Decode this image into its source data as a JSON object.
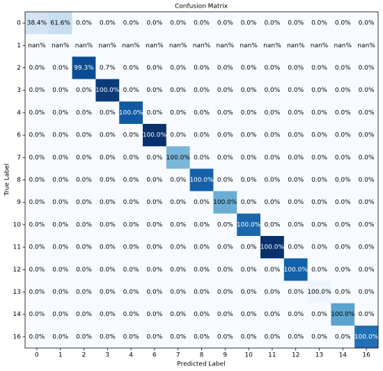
{
  "chart_data": {
    "type": "heatmap",
    "title": "Confusion Matrix",
    "xlabel": "Predicted Label",
    "ylabel": "True Label",
    "x_categories": [
      "0",
      "1",
      "2",
      "3",
      "4",
      "6",
      "7",
      "8",
      "9",
      "10",
      "11",
      "12",
      "13",
      "14",
      "16"
    ],
    "y_categories": [
      "0",
      "1",
      "2",
      "3",
      "4",
      "6",
      "7",
      "8",
      "9",
      "10",
      "11",
      "12",
      "13",
      "14",
      "16"
    ],
    "values": [
      [
        38.4,
        61.6,
        0,
        0,
        0,
        0,
        0,
        0,
        0,
        0,
        0,
        0,
        0,
        0,
        0
      ],
      [
        null,
        null,
        null,
        null,
        null,
        null,
        null,
        null,
        null,
        null,
        null,
        null,
        null,
        null,
        null
      ],
      [
        0,
        0,
        99.3,
        0.7,
        0,
        0,
        0,
        0,
        0,
        0,
        0,
        0,
        0,
        0,
        0
      ],
      [
        0,
        0,
        0,
        100,
        0,
        0,
        0,
        0,
        0,
        0,
        0,
        0,
        0,
        0,
        0
      ],
      [
        0,
        0,
        0,
        0,
        100,
        0,
        0,
        0,
        0,
        0,
        0,
        0,
        0,
        0,
        0
      ],
      [
        0,
        0,
        0,
        0,
        0,
        100,
        0,
        0,
        0,
        0,
        0,
        0,
        0,
        0,
        0
      ],
      [
        0,
        0,
        0,
        0,
        0,
        0,
        100,
        0,
        0,
        0,
        0,
        0,
        0,
        0,
        0
      ],
      [
        0,
        0,
        0,
        0,
        0,
        0,
        0,
        100,
        0,
        0,
        0,
        0,
        0,
        0,
        0
      ],
      [
        0,
        0,
        0,
        0,
        0,
        0,
        0,
        0,
        100,
        0,
        0,
        0,
        0,
        0,
        0
      ],
      [
        0,
        0,
        0,
        0,
        0,
        0,
        0,
        0,
        0,
        100,
        0,
        0,
        0,
        0,
        0
      ],
      [
        0,
        0,
        0,
        0,
        0,
        0,
        0,
        0,
        0,
        0,
        100,
        0,
        0,
        0,
        0
      ],
      [
        0,
        0,
        0,
        0,
        0,
        0,
        0,
        0,
        0,
        0,
        0,
        100,
        0,
        0,
        0
      ],
      [
        0,
        0,
        0,
        0,
        0,
        0,
        0,
        0,
        0,
        0,
        0,
        0,
        100,
        0,
        0
      ],
      [
        0,
        0,
        0,
        0,
        0,
        0,
        0,
        0,
        0,
        0,
        0,
        0,
        0,
        100,
        0
      ],
      [
        0,
        0,
        0,
        0,
        0,
        0,
        0,
        0,
        0,
        0,
        0,
        0,
        0,
        0,
        100
      ]
    ],
    "value_labels": [
      [
        "38.4%",
        "61.6%",
        "0.0%",
        "0.0%",
        "0.0%",
        "0.0%",
        "0.0%",
        "0.0%",
        "0.0%",
        "0.0%",
        "0.0%",
        "0.0%",
        "0.0%",
        "0.0%",
        "0.0%"
      ],
      [
        "nan%",
        "nan%",
        "nan%",
        "nan%",
        "nan%",
        "nan%",
        "nan%",
        "nan%",
        "nan%",
        "nan%",
        "nan%",
        "nan%",
        "nan%",
        "nan%",
        "nan%"
      ],
      [
        "0.0%",
        "0.0%",
        "99.3%",
        "0.7%",
        "0.0%",
        "0.0%",
        "0.0%",
        "0.0%",
        "0.0%",
        "0.0%",
        "0.0%",
        "0.0%",
        "0.0%",
        "0.0%",
        "0.0%"
      ],
      [
        "0.0%",
        "0.0%",
        "0.0%",
        "100.0%",
        "0.0%",
        "0.0%",
        "0.0%",
        "0.0%",
        "0.0%",
        "0.0%",
        "0.0%",
        "0.0%",
        "0.0%",
        "0.0%",
        "0.0%"
      ],
      [
        "0.0%",
        "0.0%",
        "0.0%",
        "0.0%",
        "100.0%",
        "0.0%",
        "0.0%",
        "0.0%",
        "0.0%",
        "0.0%",
        "0.0%",
        "0.0%",
        "0.0%",
        "0.0%",
        "0.0%"
      ],
      [
        "0.0%",
        "0.0%",
        "0.0%",
        "0.0%",
        "0.0%",
        "100.0%",
        "0.0%",
        "0.0%",
        "0.0%",
        "0.0%",
        "0.0%",
        "0.0%",
        "0.0%",
        "0.0%",
        "0.0%"
      ],
      [
        "0.0%",
        "0.0%",
        "0.0%",
        "0.0%",
        "0.0%",
        "0.0%",
        "100.0%",
        "0.0%",
        "0.0%",
        "0.0%",
        "0.0%",
        "0.0%",
        "0.0%",
        "0.0%",
        "0.0%"
      ],
      [
        "0.0%",
        "0.0%",
        "0.0%",
        "0.0%",
        "0.0%",
        "0.0%",
        "0.0%",
        "100.0%",
        "0.0%",
        "0.0%",
        "0.0%",
        "0.0%",
        "0.0%",
        "0.0%",
        "0.0%"
      ],
      [
        "0.0%",
        "0.0%",
        "0.0%",
        "0.0%",
        "0.0%",
        "0.0%",
        "0.0%",
        "0.0%",
        "100.0%",
        "0.0%",
        "0.0%",
        "0.0%",
        "0.0%",
        "0.0%",
        "0.0%"
      ],
      [
        "0.0%",
        "0.0%",
        "0.0%",
        "0.0%",
        "0.0%",
        "0.0%",
        "0.0%",
        "0.0%",
        "0.0%",
        "100.0%",
        "0.0%",
        "0.0%",
        "0.0%",
        "0.0%",
        "0.0%"
      ],
      [
        "0.0%",
        "0.0%",
        "0.0%",
        "0.0%",
        "0.0%",
        "0.0%",
        "0.0%",
        "0.0%",
        "0.0%",
        "0.0%",
        "100.0%",
        "0.0%",
        "0.0%",
        "0.0%",
        "0.0%"
      ],
      [
        "0.0%",
        "0.0%",
        "0.0%",
        "0.0%",
        "0.0%",
        "0.0%",
        "0.0%",
        "0.0%",
        "0.0%",
        "0.0%",
        "0.0%",
        "100.0%",
        "0.0%",
        "0.0%",
        "0.0%"
      ],
      [
        "0.0%",
        "0.0%",
        "0.0%",
        "0.0%",
        "0.0%",
        "0.0%",
        "0.0%",
        "0.0%",
        "0.0%",
        "0.0%",
        "0.0%",
        "0.0%",
        "100.0%",
        "0.0%",
        "0.0%"
      ],
      [
        "0.0%",
        "0.0%",
        "0.0%",
        "0.0%",
        "0.0%",
        "0.0%",
        "0.0%",
        "0.0%",
        "0.0%",
        "0.0%",
        "0.0%",
        "0.0%",
        "0.0%",
        "100.0%",
        "0.0%"
      ],
      [
        "0.0%",
        "0.0%",
        "0.0%",
        "0.0%",
        "0.0%",
        "0.0%",
        "0.0%",
        "0.0%",
        "0.0%",
        "0.0%",
        "0.0%",
        "0.0%",
        "0.0%",
        "0.0%",
        "100.0%"
      ]
    ],
    "colors": [
      [
        "#d3e3f3",
        "#c9ddf0",
        "#f7fbff",
        "#f7fbff",
        "#f7fbff",
        "#f7fbff",
        "#f7fbff",
        "#f7fbff",
        "#f7fbff",
        "#f7fbff",
        "#f7fbff",
        "#f7fbff",
        "#f7fbff",
        "#f7fbff",
        "#f7fbff"
      ],
      [
        "#f7fbff",
        "#f7fbff",
        "#f7fbff",
        "#f7fbff",
        "#f7fbff",
        "#f7fbff",
        "#f7fbff",
        "#f7fbff",
        "#f7fbff",
        "#f7fbff",
        "#f7fbff",
        "#f7fbff",
        "#f7fbff",
        "#f7fbff",
        "#f7fbff"
      ],
      [
        "#f7fbff",
        "#f7fbff",
        "#0b4d94",
        "#f7fbff",
        "#f7fbff",
        "#f7fbff",
        "#f7fbff",
        "#f7fbff",
        "#f7fbff",
        "#f7fbff",
        "#f7fbff",
        "#f7fbff",
        "#f7fbff",
        "#f7fbff",
        "#f7fbff"
      ],
      [
        "#f7fbff",
        "#f7fbff",
        "#f7fbff",
        "#0a3a7a",
        "#f7fbff",
        "#f7fbff",
        "#f7fbff",
        "#f7fbff",
        "#f7fbff",
        "#f7fbff",
        "#f7fbff",
        "#f7fbff",
        "#f7fbff",
        "#f7fbff",
        "#f7fbff"
      ],
      [
        "#f7fbff",
        "#f7fbff",
        "#f7fbff",
        "#f7fbff",
        "#0f5aa3",
        "#f7fbff",
        "#f7fbff",
        "#f7fbff",
        "#f7fbff",
        "#f7fbff",
        "#f7fbff",
        "#f7fbff",
        "#f7fbff",
        "#f7fbff",
        "#f7fbff"
      ],
      [
        "#f7fbff",
        "#f7fbff",
        "#f7fbff",
        "#f7fbff",
        "#f7fbff",
        "#08306b",
        "#f7fbff",
        "#f7fbff",
        "#f7fbff",
        "#f7fbff",
        "#f7fbff",
        "#f7fbff",
        "#f7fbff",
        "#f7fbff",
        "#f7fbff"
      ],
      [
        "#f7fbff",
        "#f7fbff",
        "#f7fbff",
        "#f7fbff",
        "#f7fbff",
        "#f7fbff",
        "#7ab6d9",
        "#f7fbff",
        "#f7fbff",
        "#f7fbff",
        "#f7fbff",
        "#f7fbff",
        "#f7fbff",
        "#f7fbff",
        "#f7fbff"
      ],
      [
        "#f7fbff",
        "#f7fbff",
        "#f7fbff",
        "#f7fbff",
        "#f7fbff",
        "#f7fbff",
        "#f7fbff",
        "#1561a9",
        "#f7fbff",
        "#f7fbff",
        "#f7fbff",
        "#f7fbff",
        "#f7fbff",
        "#f7fbff",
        "#f7fbff"
      ],
      [
        "#f7fbff",
        "#f7fbff",
        "#f7fbff",
        "#f7fbff",
        "#f7fbff",
        "#f7fbff",
        "#f7fbff",
        "#f7fbff",
        "#6aaed6",
        "#f7fbff",
        "#f7fbff",
        "#f7fbff",
        "#f7fbff",
        "#f7fbff",
        "#f7fbff"
      ],
      [
        "#f7fbff",
        "#f7fbff",
        "#f7fbff",
        "#f7fbff",
        "#f7fbff",
        "#f7fbff",
        "#f7fbff",
        "#f7fbff",
        "#f7fbff",
        "#1a67ad",
        "#f7fbff",
        "#f7fbff",
        "#f7fbff",
        "#f7fbff",
        "#f7fbff"
      ],
      [
        "#f7fbff",
        "#f7fbff",
        "#f7fbff",
        "#f7fbff",
        "#f7fbff",
        "#f7fbff",
        "#f7fbff",
        "#f7fbff",
        "#f7fbff",
        "#f7fbff",
        "#08306b",
        "#f7fbff",
        "#f7fbff",
        "#f7fbff",
        "#f7fbff"
      ],
      [
        "#f7fbff",
        "#f7fbff",
        "#f7fbff",
        "#f7fbff",
        "#f7fbff",
        "#f7fbff",
        "#f7fbff",
        "#f7fbff",
        "#f7fbff",
        "#f7fbff",
        "#f7fbff",
        "#1361a9",
        "#f7fbff",
        "#f7fbff",
        "#f7fbff"
      ],
      [
        "#f7fbff",
        "#f7fbff",
        "#f7fbff",
        "#f7fbff",
        "#f7fbff",
        "#f7fbff",
        "#f7fbff",
        "#f7fbff",
        "#f7fbff",
        "#f7fbff",
        "#f7fbff",
        "#f7fbff",
        "#eef5fc",
        "#f7fbff",
        "#f7fbff"
      ],
      [
        "#f7fbff",
        "#f7fbff",
        "#f7fbff",
        "#f7fbff",
        "#f7fbff",
        "#f7fbff",
        "#f7fbff",
        "#f7fbff",
        "#f7fbff",
        "#f7fbff",
        "#f7fbff",
        "#f7fbff",
        "#f7fbff",
        "#5ba3d0",
        "#f7fbff"
      ],
      [
        "#f7fbff",
        "#f7fbff",
        "#f7fbff",
        "#f7fbff",
        "#f7fbff",
        "#f7fbff",
        "#f7fbff",
        "#f7fbff",
        "#f7fbff",
        "#f7fbff",
        "#f7fbff",
        "#f7fbff",
        "#f7fbff",
        "#f7fbff",
        "#2070b4"
      ]
    ]
  }
}
